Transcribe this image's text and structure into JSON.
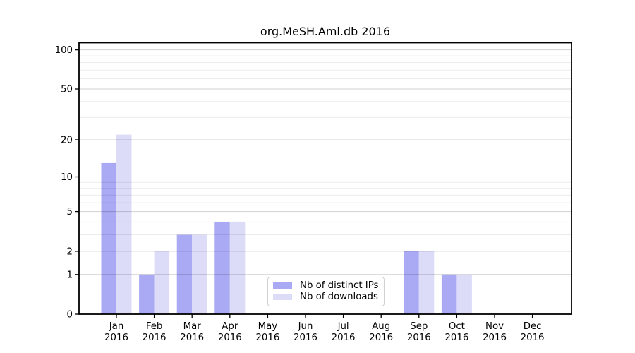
{
  "chart_data": {
    "type": "bar",
    "title": "org.MeSH.Aml.db 2016",
    "xlabel": "",
    "ylabel": "",
    "categories": [
      {
        "month": "Jan",
        "year": "2016"
      },
      {
        "month": "Feb",
        "year": "2016"
      },
      {
        "month": "Mar",
        "year": "2016"
      },
      {
        "month": "Apr",
        "year": "2016"
      },
      {
        "month": "May",
        "year": "2016"
      },
      {
        "month": "Jun",
        "year": "2016"
      },
      {
        "month": "Jul",
        "year": "2016"
      },
      {
        "month": "Aug",
        "year": "2016"
      },
      {
        "month": "Sep",
        "year": "2016"
      },
      {
        "month": "Oct",
        "year": "2016"
      },
      {
        "month": "Nov",
        "year": "2016"
      },
      {
        "month": "Dec",
        "year": "2016"
      }
    ],
    "series": [
      {
        "key": "distinct-ips",
        "name": "Nb of distinct IPs",
        "color": "#a9a9f4",
        "values": [
          13,
          1,
          3,
          4,
          0,
          0,
          0,
          0,
          2,
          1,
          0,
          0
        ]
      },
      {
        "key": "downloads",
        "name": "Nb of downloads",
        "color": "#dcdcf9",
        "values": [
          22,
          2,
          3,
          4,
          0,
          0,
          0,
          0,
          2,
          1,
          0,
          0
        ]
      }
    ],
    "yaxis": {
      "scale": "log1p",
      "ticks": [
        0,
        1,
        2,
        5,
        10,
        20,
        50,
        100
      ],
      "minor_gridlines": [
        3,
        4,
        6,
        7,
        8,
        9,
        30,
        40,
        60,
        70,
        80,
        90
      ],
      "range": [
        0,
        100
      ]
    },
    "legend": {
      "position": "lower-center",
      "entries": [
        "Nb of distinct IPs",
        "Nb of downloads"
      ]
    },
    "grid": "on"
  }
}
